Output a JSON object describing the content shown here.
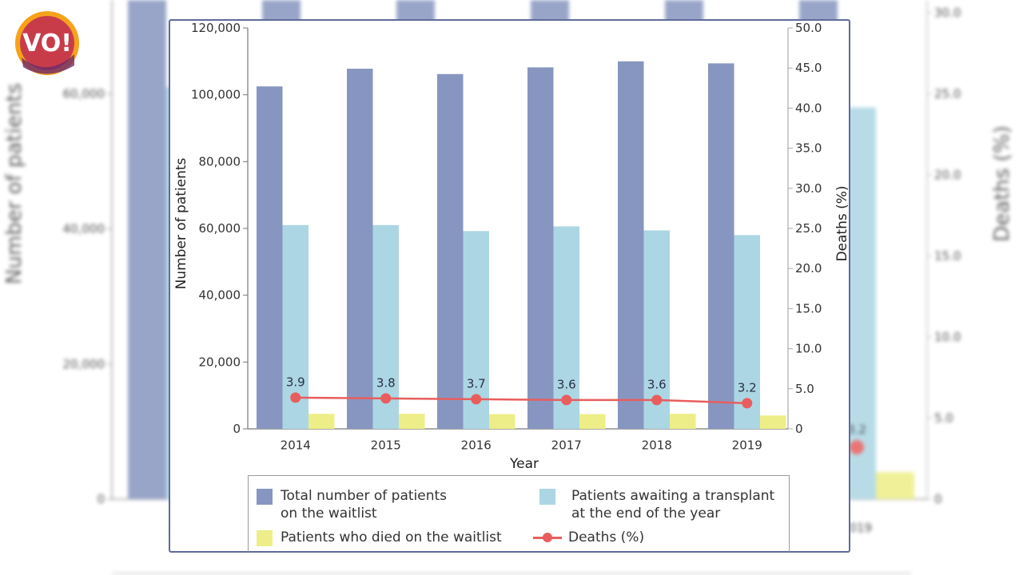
{
  "brand": {
    "logo_text": "VO!",
    "logo_colors": [
      "#f7a21b",
      "#e0453a",
      "#7a2d6e"
    ]
  },
  "colors": {
    "total": "#8796c0",
    "awaiting": "#acd6e3",
    "died": "#eeee88",
    "deaths_line": "#e85d5d",
    "frame": "#5f6b9a"
  },
  "legend": {
    "total_line1": "Total number of patients",
    "total_line2": "on the waitlist",
    "awaiting_line1": "Patients awaiting a transplant",
    "awaiting_line2": "at the end of the year",
    "died": "Patients who died on the waitlist",
    "deaths": "Deaths (%)"
  },
  "chart_data": {
    "type": "bar",
    "title": "",
    "xlabel": "Year",
    "ylabel": "Number of patients",
    "y2label": "Deaths (%)",
    "categories": [
      "2014",
      "2015",
      "2016",
      "2017",
      "2018",
      "2019"
    ],
    "ylim": [
      0,
      120000
    ],
    "y2lim": [
      0,
      50
    ],
    "yticks": [
      "0",
      "20,000",
      "40,000",
      "60,000",
      "80,000",
      "100,000",
      "120,000"
    ],
    "ytick_values": [
      0,
      20000,
      40000,
      60000,
      80000,
      100000,
      120000
    ],
    "y2ticks": [
      "0",
      "5.0",
      "10.0",
      "15.0",
      "20.0",
      "25.0",
      "30.0",
      "35.0",
      "40.0",
      "45.0",
      "50.0"
    ],
    "y2tick_values": [
      0,
      5,
      10,
      15,
      20,
      25,
      30,
      35,
      40,
      45,
      50
    ],
    "grid": false,
    "legend_position": "bottom",
    "series": [
      {
        "name": "Total number of patients on the waitlist",
        "type": "bar",
        "axis": "left",
        "values": [
          102500,
          107800,
          106200,
          108200,
          110000,
          109400
        ]
      },
      {
        "name": "Patients awaiting a transplant at the end of the year",
        "type": "bar",
        "axis": "left",
        "values": [
          61000,
          61000,
          59200,
          60600,
          59400,
          58000
        ]
      },
      {
        "name": "Patients who died on the waitlist",
        "type": "bar",
        "axis": "left",
        "values": [
          4500,
          4500,
          4400,
          4400,
          4500,
          4000
        ]
      },
      {
        "name": "Deaths (%)",
        "type": "line",
        "axis": "right",
        "values": [
          3.9,
          3.8,
          3.7,
          3.6,
          3.6,
          3.2
        ],
        "labels": [
          "3.9",
          "3.8",
          "3.7",
          "3.6",
          "3.6",
          "3.2"
        ]
      }
    ]
  }
}
